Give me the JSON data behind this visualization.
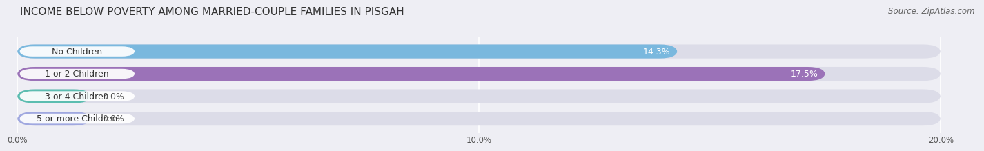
{
  "title": "INCOME BELOW POVERTY AMONG MARRIED-COUPLE FAMILIES IN PISGAH",
  "source": "Source: ZipAtlas.com",
  "categories": [
    "No Children",
    "1 or 2 Children",
    "3 or 4 Children",
    "5 or more Children"
  ],
  "values": [
    14.3,
    17.5,
    0.0,
    0.0
  ],
  "bar_colors": [
    "#7ab8de",
    "#9b72b8",
    "#5bbdb0",
    "#a0a8e0"
  ],
  "xlim_max": 20.0,
  "xticks": [
    0.0,
    10.0,
    20.0
  ],
  "xticklabels": [
    "0.0%",
    "10.0%",
    "20.0%"
  ],
  "background_color": "#eeeef4",
  "bar_bg_color": "#dcdce8",
  "title_fontsize": 11,
  "source_fontsize": 8.5,
  "bar_height": 0.62,
  "value_fontsize": 9,
  "label_fontsize": 9,
  "value_label_color_inside": "#ffffff",
  "value_label_color_outside": "#555555"
}
